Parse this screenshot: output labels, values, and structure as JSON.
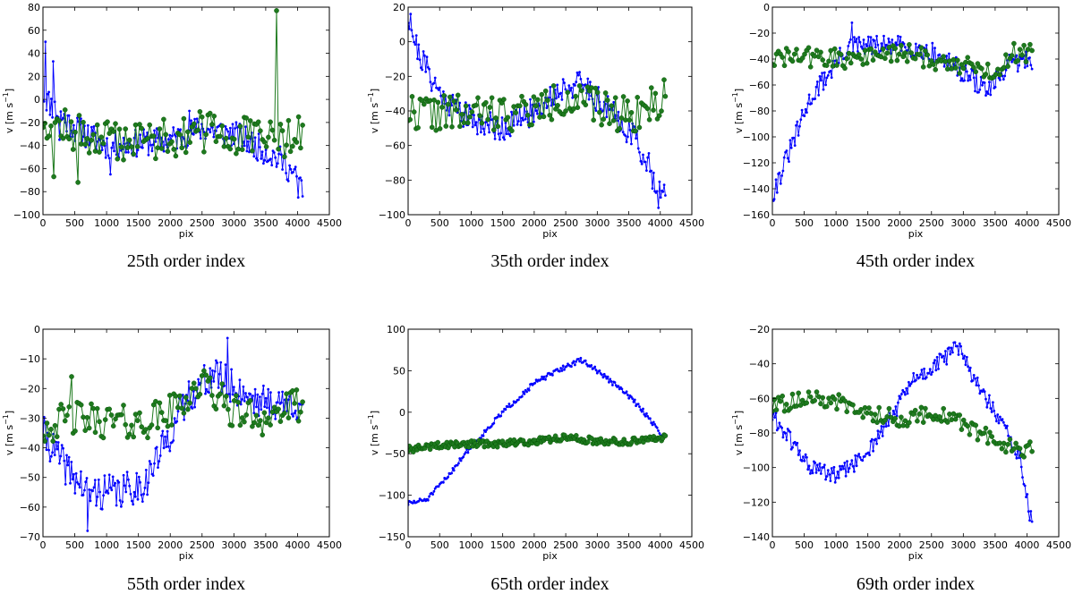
{
  "figure": {
    "description_colors": {
      "blue_series": "#0000ff",
      "green_series": "#006400",
      "green_fill": "#1e7a1e"
    }
  },
  "chart_data": [
    {
      "type": "line",
      "caption": "25th order index",
      "xlabel": "pix",
      "ylabel_base": "v [m s",
      "ylabel_sup": "−1",
      "ylabel_close": "]",
      "xlim": [
        0,
        4500
      ],
      "ylim": [
        -100,
        80
      ],
      "xticks": [
        0,
        500,
        1000,
        1500,
        2000,
        2500,
        3000,
        3500,
        4000,
        4500
      ],
      "yticks": [
        -100,
        -80,
        -60,
        -40,
        -20,
        0,
        20,
        40,
        60,
        80
      ],
      "series": [
        {
          "name": "blue",
          "color": "#0000ff",
          "marker_size": 1.4,
          "keypoints": [
            [
              0,
              5
            ],
            [
              200,
              -10
            ],
            [
              500,
              -25
            ],
            [
              1000,
              -40
            ],
            [
              1500,
              -38
            ],
            [
              2000,
              -35
            ],
            [
              2500,
              -25
            ],
            [
              3000,
              -30
            ],
            [
              3500,
              -45
            ],
            [
              3800,
              -55
            ],
            [
              4050,
              -75
            ]
          ],
          "noise": 12,
          "n": 220,
          "seed": 11,
          "spikes": [
            [
              40,
              50
            ],
            [
              160,
              33
            ],
            [
              260,
              -35
            ],
            [
              1060,
              -65
            ],
            [
              4010,
              -85
            ],
            [
              2300,
              -10
            ]
          ]
        },
        {
          "name": "green",
          "color": "#1e7a1e",
          "marker_size": 2.6,
          "keypoints": [
            [
              0,
              -15
            ],
            [
              500,
              -30
            ],
            [
              1000,
              -35
            ],
            [
              1500,
              -35
            ],
            [
              2000,
              -32
            ],
            [
              2500,
              -28
            ],
            [
              3000,
              -32
            ],
            [
              3500,
              -35
            ],
            [
              4050,
              -30
            ]
          ],
          "noise": 18,
          "n": 130,
          "seed": 12,
          "spikes": [
            [
              3670,
              77
            ],
            [
              170,
              -67
            ],
            [
              550,
              -72
            ]
          ]
        }
      ]
    },
    {
      "type": "line",
      "caption": "35th order index",
      "xlabel": "pix",
      "ylabel_base": "v [m s",
      "ylabel_sup": "−1",
      "ylabel_close": "]",
      "xlim": [
        0,
        4500
      ],
      "ylim": [
        -100,
        20
      ],
      "xticks": [
        0,
        500,
        1000,
        1500,
        2000,
        2500,
        3000,
        3500,
        4000,
        4500
      ],
      "yticks": [
        -100,
        -80,
        -60,
        -40,
        -20,
        0,
        20
      ],
      "series": [
        {
          "name": "blue",
          "color": "#0000ff",
          "marker_size": 1.4,
          "keypoints": [
            [
              0,
              15
            ],
            [
              150,
              -5
            ],
            [
              500,
              -30
            ],
            [
              1000,
              -45
            ],
            [
              1500,
              -50
            ],
            [
              2000,
              -40
            ],
            [
              2500,
              -25
            ],
            [
              2800,
              -25
            ],
            [
              3200,
              -40
            ],
            [
              3600,
              -55
            ],
            [
              3850,
              -75
            ],
            [
              4050,
              -90
            ]
          ],
          "noise": 8,
          "n": 220,
          "seed": 21,
          "spikes": [
            [
              40,
              16
            ],
            [
              3970,
              -96
            ]
          ]
        },
        {
          "name": "green",
          "color": "#1e7a1e",
          "marker_size": 2.6,
          "keypoints": [
            [
              0,
              -40
            ],
            [
              1000,
              -42
            ],
            [
              2000,
              -40
            ],
            [
              2500,
              -32
            ],
            [
              3000,
              -38
            ],
            [
              3500,
              -42
            ],
            [
              4050,
              -35
            ]
          ],
          "noise": 11,
          "n": 130,
          "seed": 22,
          "spikes": [
            [
              4060,
              -22
            ]
          ]
        }
      ]
    },
    {
      "type": "line",
      "caption": "45th order index",
      "xlabel": "pix",
      "ylabel_base": "v [m s",
      "ylabel_sup": "−1",
      "ylabel_close": "]",
      "xlim": [
        0,
        4500
      ],
      "ylim": [
        -160,
        0
      ],
      "xticks": [
        0,
        500,
        1000,
        1500,
        2000,
        2500,
        3000,
        3500,
        4000,
        4500
      ],
      "yticks": [
        -160,
        -140,
        -120,
        -100,
        -80,
        -60,
        -40,
        -20,
        0
      ],
      "series": [
        {
          "name": "blue",
          "color": "#0000ff",
          "marker_size": 1.4,
          "keypoints": [
            [
              0,
              -145
            ],
            [
              200,
              -120
            ],
            [
              400,
              -95
            ],
            [
              600,
              -70
            ],
            [
              900,
              -50
            ],
            [
              1200,
              -30
            ],
            [
              1500,
              -30
            ],
            [
              2000,
              -30
            ],
            [
              2500,
              -35
            ],
            [
              3000,
              -50
            ],
            [
              3400,
              -65
            ],
            [
              3700,
              -45
            ],
            [
              4050,
              -40
            ]
          ],
          "noise": 8,
          "n": 220,
          "seed": 31,
          "spikes": [
            [
              30,
              -148
            ],
            [
              1250,
              -12
            ]
          ]
        },
        {
          "name": "green",
          "color": "#1e7a1e",
          "marker_size": 2.6,
          "keypoints": [
            [
              0,
              -40
            ],
            [
              500,
              -38
            ],
            [
              1000,
              -40
            ],
            [
              1500,
              -38
            ],
            [
              2000,
              -35
            ],
            [
              2500,
              -40
            ],
            [
              3000,
              -45
            ],
            [
              3500,
              -50
            ],
            [
              3800,
              -35
            ],
            [
              4050,
              -35
            ]
          ],
          "noise": 8,
          "n": 130,
          "seed": 32,
          "spikes": []
        }
      ]
    },
    {
      "type": "line",
      "caption": "55th order index",
      "xlabel": "pix",
      "ylabel_base": "v [m s",
      "ylabel_sup": "−1",
      "ylabel_close": "]",
      "xlim": [
        0,
        4500
      ],
      "ylim": [
        -70,
        0
      ],
      "xticks": [
        0,
        500,
        1000,
        1500,
        2000,
        2500,
        3000,
        3500,
        4000,
        4500
      ],
      "yticks": [
        -70,
        -60,
        -50,
        -40,
        -30,
        -20,
        -10,
        0
      ],
      "series": [
        {
          "name": "blue",
          "color": "#0000ff",
          "marker_size": 1.4,
          "keypoints": [
            [
              0,
              -35
            ],
            [
              300,
              -45
            ],
            [
              700,
              -55
            ],
            [
              1200,
              -55
            ],
            [
              1600,
              -52
            ],
            [
              2000,
              -35
            ],
            [
              2300,
              -22
            ],
            [
              2700,
              -15
            ],
            [
              3000,
              -20
            ],
            [
              3500,
              -25
            ],
            [
              4050,
              -25
            ]
          ],
          "noise": 6,
          "n": 220,
          "seed": 41,
          "spikes": [
            [
              2900,
              -3
            ],
            [
              700,
              -68
            ]
          ]
        },
        {
          "name": "green",
          "color": "#1e7a1e",
          "marker_size": 2.6,
          "keypoints": [
            [
              0,
              -33
            ],
            [
              500,
              -30
            ],
            [
              1000,
              -31
            ],
            [
              1500,
              -32
            ],
            [
              2000,
              -28
            ],
            [
              2500,
              -18
            ],
            [
              3000,
              -28
            ],
            [
              3500,
              -30
            ],
            [
              4050,
              -25
            ]
          ],
          "noise": 6,
          "n": 130,
          "seed": 42,
          "spikes": [
            [
              450,
              -16
            ]
          ]
        }
      ]
    },
    {
      "type": "line",
      "caption": "65th order index",
      "xlabel": "pix",
      "ylabel_base": "v [m s",
      "ylabel_sup": "−1",
      "ylabel_close": "]",
      "xlim": [
        0,
        4500
      ],
      "ylim": [
        -150,
        100
      ],
      "xticks": [
        0,
        500,
        1000,
        1500,
        2000,
        2500,
        3000,
        3500,
        4000,
        4500
      ],
      "yticks": [
        -150,
        -100,
        -50,
        0,
        50,
        100
      ],
      "series": [
        {
          "name": "blue",
          "color": "#0000ff",
          "marker_size": 1.4,
          "keypoints": [
            [
              0,
              -110
            ],
            [
              300,
              -105
            ],
            [
              600,
              -80
            ],
            [
              900,
              -50
            ],
            [
              1200,
              -25
            ],
            [
              1500,
              0
            ],
            [
              2000,
              35
            ],
            [
              2500,
              55
            ],
            [
              2750,
              63
            ],
            [
              3000,
              50
            ],
            [
              3500,
              20
            ],
            [
              3800,
              -5
            ],
            [
              4050,
              -30
            ]
          ],
          "noise": 3,
          "n": 220,
          "seed": 51,
          "spikes": []
        },
        {
          "name": "green",
          "color": "#1e7a1e",
          "marker_size": 2.6,
          "keypoints": [
            [
              0,
              -45
            ],
            [
              500,
              -40
            ],
            [
              1000,
              -38
            ],
            [
              1500,
              -38
            ],
            [
              2000,
              -35
            ],
            [
              2500,
              -30
            ],
            [
              3000,
              -35
            ],
            [
              3500,
              -35
            ],
            [
              4050,
              -30
            ]
          ],
          "noise": 4,
          "n": 200,
          "seed": 52,
          "spikes": []
        }
      ]
    },
    {
      "type": "line",
      "caption": "69th order index",
      "xlabel": "pix",
      "ylabel_base": "v [m s",
      "ylabel_sup": "−1",
      "ylabel_close": "]",
      "xlim": [
        0,
        4500
      ],
      "ylim": [
        -140,
        -20
      ],
      "xticks": [
        0,
        500,
        1000,
        1500,
        2000,
        2500,
        3000,
        3500,
        4000,
        4500
      ],
      "yticks": [
        -140,
        -120,
        -100,
        -80,
        -60,
        -40,
        -20
      ],
      "series": [
        {
          "name": "blue",
          "color": "#0000ff",
          "marker_size": 1.4,
          "keypoints": [
            [
              0,
              -70
            ],
            [
              300,
              -85
            ],
            [
              600,
              -100
            ],
            [
              1000,
              -105
            ],
            [
              1400,
              -95
            ],
            [
              1800,
              -75
            ],
            [
              2200,
              -50
            ],
            [
              2600,
              -40
            ],
            [
              2900,
              -30
            ],
            [
              3200,
              -50
            ],
            [
              3600,
              -75
            ],
            [
              3900,
              -95
            ],
            [
              4050,
              -130
            ]
          ],
          "noise": 5,
          "n": 220,
          "seed": 61,
          "spikes": []
        },
        {
          "name": "green",
          "color": "#1e7a1e",
          "marker_size": 2.6,
          "keypoints": [
            [
              0,
              -65
            ],
            [
              500,
              -60
            ],
            [
              1000,
              -62
            ],
            [
              1500,
              -68
            ],
            [
              2000,
              -72
            ],
            [
              2500,
              -68
            ],
            [
              3000,
              -75
            ],
            [
              3500,
              -85
            ],
            [
              4050,
              -90
            ]
          ],
          "noise": 5,
          "n": 130,
          "seed": 62,
          "spikes": []
        }
      ]
    }
  ]
}
